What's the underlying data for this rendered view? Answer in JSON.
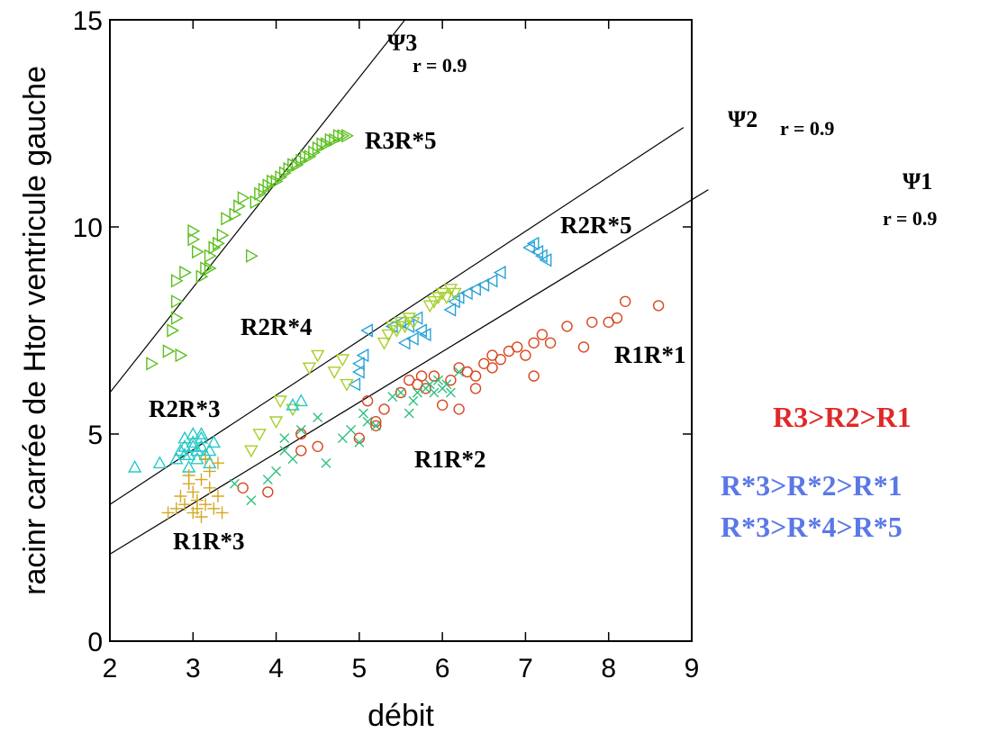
{
  "chart_data": {
    "type": "scatter",
    "xlabel": "débit",
    "ylabel": "racinr carrée de Htor ventricule gauche",
    "xlim": [
      2,
      9
    ],
    "ylim": [
      0,
      15
    ],
    "xticks": [
      2,
      3,
      4,
      5,
      6,
      7,
      8,
      9
    ],
    "yticks": [
      0,
      5,
      10,
      15
    ],
    "x_tick_labels": [
      "2",
      "3",
      "4",
      "5",
      "6",
      "7",
      "8",
      "9"
    ],
    "y_tick_labels": [
      "0",
      "5",
      "10",
      "15"
    ],
    "regression_lines": [
      {
        "name": "Ψ3",
        "r_label": "r = 0.9",
        "x": [
          2.0,
          5.55
        ],
        "y": [
          6.0,
          15.0
        ]
      },
      {
        "name": "Ψ2",
        "r_label": "r = 0.9",
        "x": [
          2.0,
          8.9
        ],
        "y": [
          3.3,
          12.4
        ]
      },
      {
        "name": "Ψ1",
        "r_label": "r = 0.9",
        "x": [
          2.0,
          9.2
        ],
        "y": [
          2.1,
          10.9
        ]
      }
    ],
    "series": [
      {
        "name": "R3R*5",
        "marker": "triangle-right",
        "color": "#5cbf1e",
        "x": [
          2.5,
          2.7,
          2.75,
          2.8,
          2.8,
          2.8,
          2.85,
          2.9,
          3.2,
          3.2,
          3.25,
          3.3,
          3.35,
          3.4,
          3.5,
          3.55,
          3.6,
          3.7,
          3.75,
          3.8,
          3.85,
          3.9,
          3.95,
          4.0,
          4.05,
          4.1,
          4.15,
          4.2,
          4.25,
          4.3,
          4.35,
          4.4,
          4.45,
          4.5,
          4.55,
          4.6,
          4.65,
          4.7,
          4.75,
          4.8,
          4.85,
          3.0,
          3.05,
          3.1,
          3.0,
          3.15
        ],
        "y": [
          6.7,
          7.0,
          7.5,
          7.8,
          8.2,
          8.7,
          6.9,
          8.9,
          9.0,
          9.3,
          9.5,
          9.6,
          9.8,
          10.2,
          10.3,
          10.5,
          10.7,
          9.3,
          10.6,
          10.8,
          10.9,
          11.0,
          11.1,
          11.1,
          11.2,
          11.3,
          11.4,
          11.5,
          11.5,
          11.6,
          11.7,
          11.7,
          11.8,
          11.9,
          12.0,
          12.0,
          12.1,
          12.1,
          12.2,
          12.2,
          12.2,
          9.9,
          9.4,
          8.8,
          9.7,
          9.0
        ]
      },
      {
        "name": "R2R*5",
        "marker": "triangle-left",
        "color": "#29a3d6",
        "x": [
          5.0,
          5.05,
          5.1,
          5.4,
          5.5,
          5.6,
          5.7,
          5.75,
          5.8,
          6.1,
          6.15,
          6.2,
          6.3,
          6.4,
          6.5,
          6.6,
          6.7,
          7.05,
          7.1,
          7.15,
          7.2,
          7.25,
          4.95,
          5.0,
          5.65,
          5.55
        ],
        "y": [
          6.5,
          6.9,
          7.5,
          7.6,
          7.7,
          7.6,
          7.8,
          7.5,
          7.4,
          8.0,
          8.2,
          8.3,
          8.4,
          8.5,
          8.6,
          8.7,
          8.9,
          9.5,
          9.6,
          9.4,
          9.3,
          9.2,
          6.2,
          6.7,
          7.3,
          7.2
        ]
      },
      {
        "name": "R2R*4",
        "marker": "triangle-down",
        "color": "#a6cf2a",
        "x": [
          3.7,
          4.0,
          4.05,
          4.2,
          4.5,
          4.7,
          4.8,
          4.85,
          5.3,
          5.35,
          5.4,
          5.45,
          5.5,
          5.55,
          5.6,
          5.65,
          5.85,
          5.9,
          5.95,
          6.0,
          6.05,
          6.1,
          6.15,
          3.8,
          4.4
        ],
        "y": [
          4.6,
          5.3,
          5.8,
          5.6,
          6.9,
          6.5,
          6.8,
          6.2,
          7.2,
          7.4,
          7.6,
          7.5,
          7.7,
          7.6,
          7.8,
          7.7,
          8.1,
          8.2,
          8.3,
          8.4,
          8.3,
          8.5,
          8.4,
          5.0,
          6.6
        ]
      },
      {
        "name": "R2R*3",
        "marker": "triangle-up",
        "color": "#28c8c8",
        "x": [
          2.3,
          2.6,
          2.8,
          2.85,
          2.9,
          2.9,
          2.95,
          3.0,
          3.0,
          3.05,
          3.1,
          3.1,
          3.15,
          3.2,
          2.95,
          3.05,
          3.0,
          3.1,
          3.25,
          2.9,
          3.2,
          4.2,
          4.3
        ],
        "y": [
          4.2,
          4.3,
          4.4,
          4.6,
          4.7,
          4.9,
          4.5,
          4.8,
          5.0,
          4.6,
          4.7,
          4.9,
          4.5,
          4.3,
          4.2,
          4.4,
          4.7,
          5.0,
          4.8,
          4.5,
          4.6,
          5.7,
          5.8
        ]
      },
      {
        "name": "R1R*1",
        "marker": "circle",
        "color": "#d9461e",
        "x": [
          3.6,
          3.9,
          4.3,
          4.3,
          4.5,
          5.0,
          5.1,
          5.2,
          5.3,
          5.5,
          5.6,
          5.7,
          5.75,
          5.8,
          5.9,
          6.0,
          6.1,
          6.2,
          6.2,
          6.3,
          6.4,
          6.5,
          6.6,
          6.7,
          6.8,
          6.9,
          7.0,
          7.1,
          7.2,
          7.3,
          7.5,
          7.7,
          7.8,
          8.0,
          8.1,
          8.2,
          8.6,
          5.2,
          6.4,
          6.6,
          7.1
        ],
        "y": [
          3.7,
          3.6,
          4.6,
          5.0,
          4.7,
          4.9,
          5.8,
          5.2,
          5.6,
          6.0,
          6.3,
          6.2,
          6.4,
          6.1,
          6.4,
          5.7,
          6.3,
          6.6,
          5.6,
          6.5,
          6.4,
          6.7,
          6.6,
          6.8,
          7.0,
          7.1,
          6.9,
          7.2,
          7.4,
          7.2,
          7.6,
          7.1,
          7.7,
          7.7,
          7.8,
          8.2,
          8.1,
          5.3,
          6.1,
          6.9,
          6.4
        ]
      },
      {
        "name": "R1R*2",
        "marker": "x",
        "color": "#30c080",
        "x": [
          3.5,
          3.7,
          3.9,
          4.0,
          4.1,
          4.2,
          4.3,
          4.5,
          4.6,
          4.8,
          4.9,
          5.0,
          5.05,
          5.1,
          5.2,
          5.4,
          5.5,
          5.6,
          5.65,
          5.7,
          5.8,
          5.85,
          5.9,
          5.95,
          6.0,
          6.05,
          6.1,
          6.2,
          4.1
        ],
        "y": [
          3.8,
          3.4,
          3.9,
          4.1,
          4.6,
          4.4,
          5.1,
          5.4,
          4.3,
          4.9,
          5.1,
          4.8,
          5.5,
          5.3,
          5.2,
          5.9,
          6.0,
          5.5,
          5.8,
          6.0,
          6.1,
          6.2,
          6.0,
          6.3,
          6.1,
          6.2,
          6.0,
          6.5,
          4.9
        ]
      },
      {
        "name": "R1R*3",
        "marker": "plus",
        "color": "#d4a820",
        "x": [
          2.7,
          2.8,
          2.85,
          2.9,
          2.95,
          3.0,
          3.0,
          3.05,
          3.1,
          3.1,
          3.15,
          3.2,
          3.2,
          3.25,
          3.3,
          3.3,
          2.95,
          3.05,
          3.15,
          3.35
        ],
        "y": [
          3.1,
          3.2,
          3.5,
          3.3,
          3.8,
          3.1,
          3.6,
          3.4,
          3.0,
          3.9,
          3.3,
          3.7,
          4.1,
          3.2,
          3.5,
          4.3,
          4.0,
          3.2,
          4.4,
          3.1
        ]
      }
    ],
    "annotations": {
      "series_labels": [
        "R3R*5",
        "R2R*5",
        "R2R*4",
        "R2R*3",
        "R1R*1",
        "R1R*2",
        "R1R*3"
      ],
      "ranking": {
        "line1": "R3>R2>R1",
        "line2": "R*3>R*2>R*1",
        "line3": "R*3>R*4>R*5"
      }
    }
  }
}
